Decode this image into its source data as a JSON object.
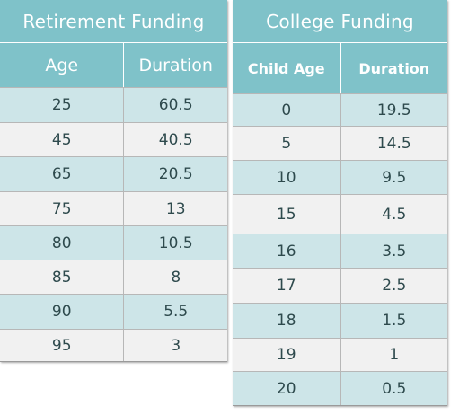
{
  "retirement": {
    "title": "Retirement Funding",
    "headers": [
      "Age",
      "Duration"
    ],
    "rows": [
      [
        "25",
        "60.5"
      ],
      [
        "45",
        "40.5"
      ],
      [
        "65",
        "20.5"
      ],
      [
        "75",
        "13"
      ],
      [
        "80",
        "10.5"
      ],
      [
        "85",
        "8"
      ],
      [
        "90",
        "5.5"
      ],
      [
        "95",
        "3"
      ]
    ]
  },
  "college": {
    "title": "College Funding",
    "headers": [
      "Child Age",
      "Duration"
    ],
    "rows": [
      [
        "0",
        "19.5"
      ],
      [
        "5",
        "14.5"
      ],
      [
        "10",
        "9.5"
      ],
      [
        "15",
        "4.5"
      ],
      [
        "16",
        "3.5"
      ],
      [
        "17",
        "2.5"
      ],
      [
        "18",
        "1.5"
      ],
      [
        "19",
        "1"
      ],
      [
        "20",
        "0.5"
      ]
    ]
  },
  "colors": {
    "header": "#7fc2c9",
    "row_even": "#cde5e8",
    "row_odd": "#f1f1f1"
  }
}
